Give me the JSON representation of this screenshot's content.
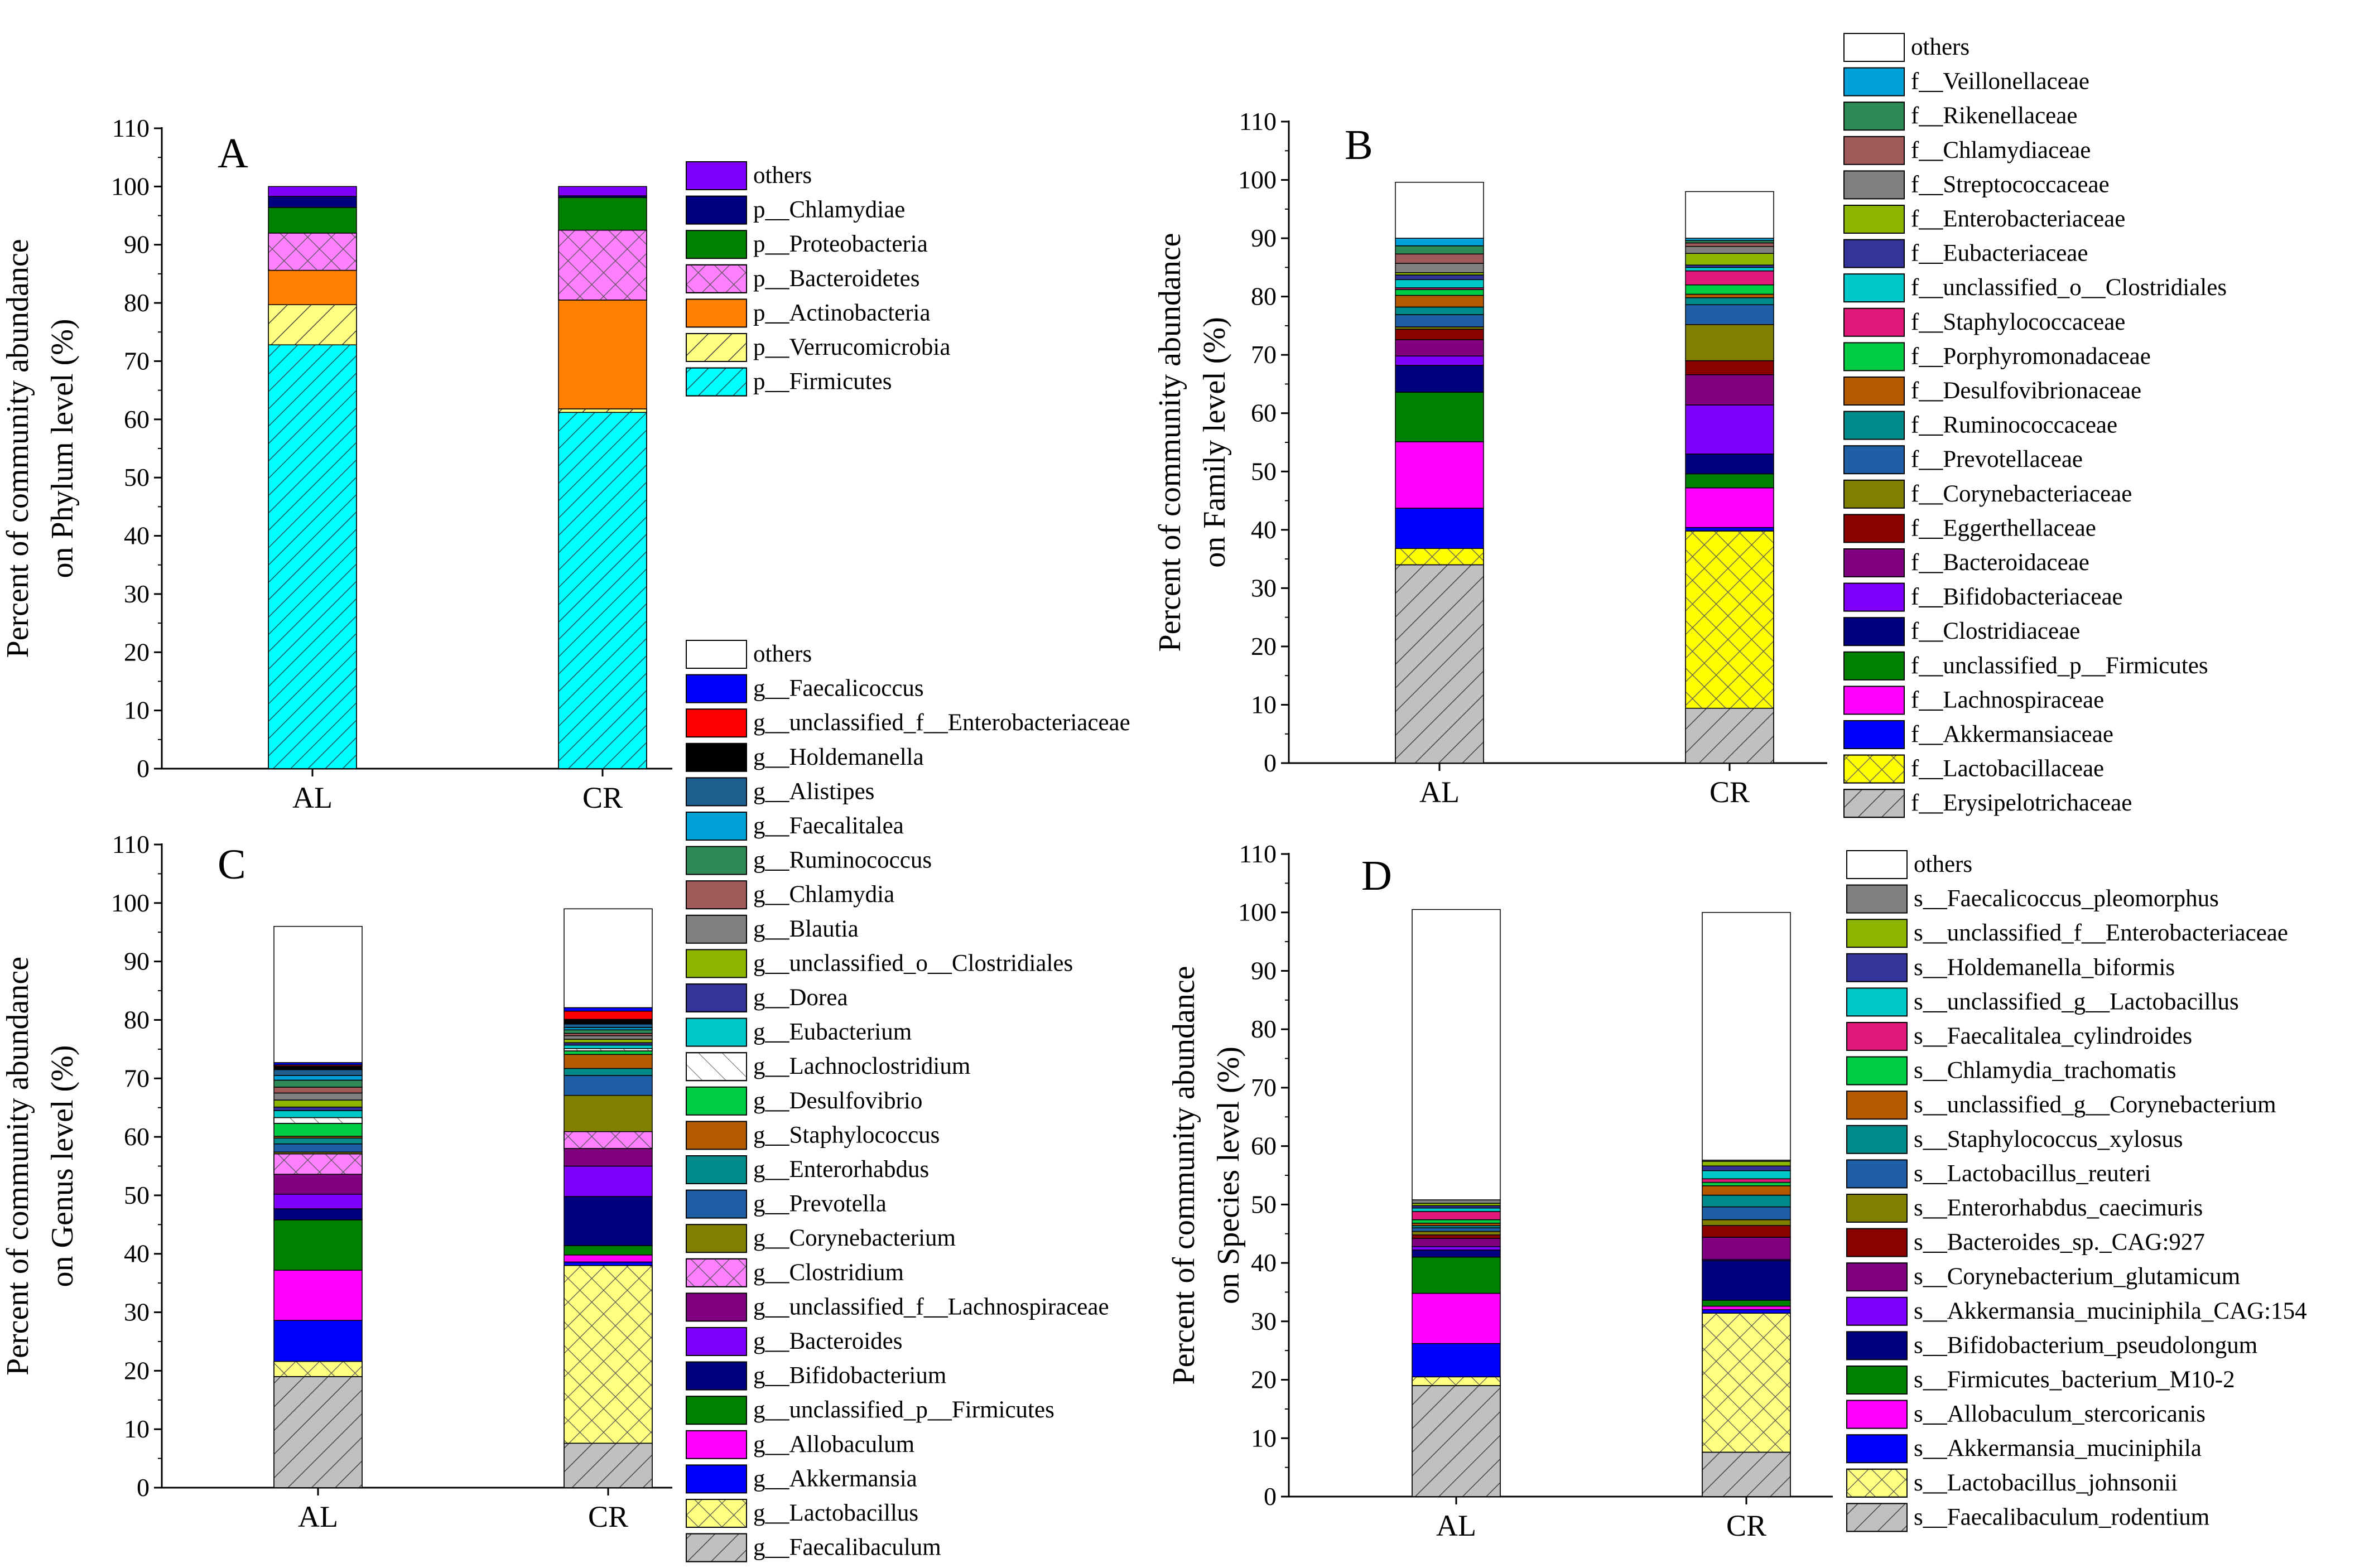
{
  "chart_data": [
    {
      "panel": "A",
      "type": "bar",
      "stacked": true,
      "categories": [
        "AL",
        "CR"
      ],
      "ylabel": [
        "Percent of community abundance",
        "on Phylum level (%)"
      ],
      "ylim": [
        0,
        110
      ],
      "yticks": [
        0,
        10,
        20,
        30,
        40,
        50,
        60,
        70,
        80,
        90,
        100,
        110
      ],
      "series": [
        {
          "name": "p__Firmicutes",
          "color": "#00ffff",
          "hatch": "diag-dense",
          "values": [
            72.8,
            61.2
          ]
        },
        {
          "name": "p__Verrucomicrobia",
          "color": "#ffff80",
          "hatch": "diag",
          "values": [
            6.9,
            0.6
          ]
        },
        {
          "name": "p__Actinobacteria",
          "color": "#ff8000",
          "hatch": "none",
          "values": [
            5.9,
            18.7
          ]
        },
        {
          "name": "p__Bacteroidetes",
          "color": "#ff80ff",
          "hatch": "cross",
          "values": [
            6.4,
            12.0
          ]
        },
        {
          "name": "p__Proteobacteria",
          "color": "#008000",
          "hatch": "none",
          "values": [
            4.4,
            5.6
          ]
        },
        {
          "name": "p__Chlamydiae",
          "color": "#000080",
          "hatch": "none",
          "values": [
            1.9,
            0.3
          ]
        },
        {
          "name": "others",
          "color": "#8000ff",
          "hatch": "none",
          "values": [
            1.7,
            1.6
          ]
        }
      ]
    },
    {
      "panel": "B",
      "type": "bar",
      "stacked": true,
      "categories": [
        "AL",
        "CR"
      ],
      "ylabel": [
        "Percent of community abundance",
        "on Family level (%)"
      ],
      "ylim": [
        0,
        110
      ],
      "yticks": [
        0,
        10,
        20,
        30,
        40,
        50,
        60,
        70,
        80,
        90,
        100,
        110
      ],
      "series": [
        {
          "name": "f__Erysipelotrichaceae",
          "color": "#c0c0c0",
          "hatch": "diag",
          "values": [
            34.0,
            9.4
          ]
        },
        {
          "name": "f__Lactobacillaceae",
          "color": "#ffff00",
          "hatch": "cross",
          "values": [
            2.8,
            30.4
          ]
        },
        {
          "name": "f__Akkermansiaceae",
          "color": "#0000ff",
          "hatch": "none",
          "values": [
            6.9,
            0.6
          ]
        },
        {
          "name": "f__Lachnospiraceae",
          "color": "#ff00ff",
          "hatch": "none",
          "values": [
            11.4,
            6.8
          ]
        },
        {
          "name": "f__unclassified_p__Firmicutes",
          "color": "#008000",
          "hatch": "none",
          "values": [
            8.5,
            2.4
          ]
        },
        {
          "name": "f__Clostridiaceae",
          "color": "#000080",
          "hatch": "none",
          "values": [
            4.6,
            3.4
          ]
        },
        {
          "name": "f__Bifidobacteriaceae",
          "color": "#8000ff",
          "hatch": "none",
          "values": [
            1.6,
            8.4
          ]
        },
        {
          "name": "f__Bacteroidaceae",
          "color": "#800080",
          "hatch": "none",
          "values": [
            2.8,
            5.2
          ]
        },
        {
          "name": "f__Eggerthellaceae",
          "color": "#8b0000",
          "hatch": "none",
          "values": [
            1.8,
            2.4
          ]
        },
        {
          "name": "f__Corynebacteriaceae",
          "color": "#808000",
          "hatch": "none",
          "values": [
            0.4,
            6.2
          ]
        },
        {
          "name": "f__Prevotellaceae",
          "color": "#1f5fa6",
          "hatch": "none",
          "values": [
            2.1,
            3.4
          ]
        },
        {
          "name": "f__Ruminococcaceae",
          "color": "#008b8b",
          "hatch": "none",
          "values": [
            1.3,
            1.2
          ]
        },
        {
          "name": "f__Desulfovibrionaceae",
          "color": "#b35900",
          "hatch": "none",
          "values": [
            2.0,
            0.6
          ]
        },
        {
          "name": "f__Porphyromonadaceae",
          "color": "#00cc44",
          "hatch": "none",
          "values": [
            1.0,
            1.6
          ]
        },
        {
          "name": "f__Staphylococcaceae",
          "color": "#e0197a",
          "hatch": "none",
          "values": [
            0.3,
            2.4
          ]
        },
        {
          "name": "f__unclassified_o__Clostridiales",
          "color": "#00c8c8",
          "hatch": "none",
          "values": [
            1.4,
            0.6
          ]
        },
        {
          "name": "f__Eubacteriaceae",
          "color": "#333399",
          "hatch": "none",
          "values": [
            0.8,
            0.4
          ]
        },
        {
          "name": "f__Enterobacteriaceae",
          "color": "#8db600",
          "hatch": "none",
          "values": [
            0.4,
            2.0
          ]
        },
        {
          "name": "f__Streptococcaceae",
          "color": "#808080",
          "hatch": "none",
          "values": [
            1.6,
            1.2
          ]
        },
        {
          "name": "f__Chlamydiaceae",
          "color": "#a05a5a",
          "hatch": "none",
          "values": [
            1.6,
            0.6
          ]
        },
        {
          "name": "f__Rikenellaceae",
          "color": "#2e8b57",
          "hatch": "none",
          "values": [
            1.4,
            0.4
          ]
        },
        {
          "name": "f__Veillonellaceae",
          "color": "#00a0d8",
          "hatch": "none",
          "values": [
            1.3,
            0.4
          ]
        },
        {
          "name": "others",
          "color": "#ffffff",
          "hatch": "none",
          "values": [
            9.6,
            8.0
          ]
        }
      ]
    },
    {
      "panel": "C",
      "type": "bar",
      "stacked": true,
      "categories": [
        "AL",
        "CR"
      ],
      "ylabel": [
        "Percent of community abundance",
        "on Genus level (%)"
      ],
      "ylim": [
        0,
        110
      ],
      "yticks": [
        0,
        10,
        20,
        30,
        40,
        50,
        60,
        70,
        80,
        90,
        100,
        110
      ],
      "series": [
        {
          "name": "g__Faecalibaculum",
          "color": "#c0c0c0",
          "hatch": "diag",
          "values": [
            19.0,
            7.6
          ]
        },
        {
          "name": "g__Lactobacillus",
          "color": "#ffff80",
          "hatch": "cross",
          "values": [
            2.6,
            30.4
          ]
        },
        {
          "name": "g__Akkermansia",
          "color": "#0000ff",
          "hatch": "none",
          "values": [
            7.0,
            0.6
          ]
        },
        {
          "name": "g__Allobaculum",
          "color": "#ff00ff",
          "hatch": "none",
          "values": [
            8.6,
            1.2
          ]
        },
        {
          "name": "g__unclassified_p__Firmicutes",
          "color": "#008000",
          "hatch": "none",
          "values": [
            8.6,
            1.6
          ]
        },
        {
          "name": "g__Bifidobacterium",
          "color": "#000080",
          "hatch": "none",
          "values": [
            1.9,
            8.4
          ]
        },
        {
          "name": "g__Bacteroides",
          "color": "#8000ff",
          "hatch": "none",
          "values": [
            2.5,
            5.2
          ]
        },
        {
          "name": "g__unclassified_f__Lachnospiraceae",
          "color": "#800080",
          "hatch": "none",
          "values": [
            3.4,
            3.0
          ]
        },
        {
          "name": "g__Clostridium",
          "color": "#ff80ff",
          "hatch": "cross",
          "values": [
            3.5,
            2.9
          ]
        },
        {
          "name": "g__Corynebacterium",
          "color": "#808000",
          "hatch": "none",
          "values": [
            0.3,
            6.2
          ]
        },
        {
          "name": "g__Prevotella",
          "color": "#1f5fa6",
          "hatch": "none",
          "values": [
            1.4,
            3.4
          ]
        },
        {
          "name": "g__Enterorhabdus",
          "color": "#008b8b",
          "hatch": "none",
          "values": [
            1.0,
            1.2
          ]
        },
        {
          "name": "g__Staphylococcus",
          "color": "#b35900",
          "hatch": "none",
          "values": [
            0.3,
            2.4
          ]
        },
        {
          "name": "g__Desulfovibrio",
          "color": "#00cc44",
          "hatch": "none",
          "values": [
            2.2,
            0.6
          ]
        },
        {
          "name": "g__Lachnoclostridium",
          "color": "#ffffff",
          "hatch": "diag-thin",
          "values": [
            1.0,
            0.4
          ]
        },
        {
          "name": "g__Eubacterium",
          "color": "#00c8c8",
          "hatch": "none",
          "values": [
            1.2,
            0.6
          ]
        },
        {
          "name": "g__Dorea",
          "color": "#333399",
          "hatch": "none",
          "values": [
            0.6,
            0.4
          ]
        },
        {
          "name": "g__unclassified_o__Clostridiales",
          "color": "#8db600",
          "hatch": "none",
          "values": [
            1.2,
            0.6
          ]
        },
        {
          "name": "g__Blautia",
          "color": "#808080",
          "hatch": "none",
          "values": [
            1.2,
            0.6
          ]
        },
        {
          "name": "g__Chlamydia",
          "color": "#a05a5a",
          "hatch": "none",
          "values": [
            1.0,
            0.4
          ]
        },
        {
          "name": "g__Ruminococcus",
          "color": "#2e8b57",
          "hatch": "none",
          "values": [
            1.2,
            0.6
          ]
        },
        {
          "name": "g__Faecalitalea",
          "color": "#00a0d8",
          "hatch": "none",
          "values": [
            0.8,
            0.4
          ]
        },
        {
          "name": "g__Alistipes",
          "color": "#1f5f8f",
          "hatch": "none",
          "values": [
            1.0,
            0.6
          ]
        },
        {
          "name": "g__Holdemanella",
          "color": "#000000",
          "hatch": "none",
          "values": [
            0.6,
            0.8
          ]
        },
        {
          "name": "g__unclassified_f__Enterobacteriaceae",
          "color": "#ff0000",
          "hatch": "none",
          "values": [
            0.2,
            1.4
          ]
        },
        {
          "name": "g__Faecalicoccus",
          "color": "#0000ff",
          "hatch": "none",
          "values": [
            0.4,
            0.6
          ]
        },
        {
          "name": "others",
          "color": "#ffffff",
          "hatch": "none",
          "values": [
            23.3,
            16.9
          ]
        }
      ]
    },
    {
      "panel": "D",
      "type": "bar",
      "stacked": true,
      "categories": [
        "AL",
        "CR"
      ],
      "ylabel": [
        "Percent of community abundance",
        "on Species level (%)"
      ],
      "ylim": [
        0,
        110
      ],
      "yticks": [
        0,
        10,
        20,
        30,
        40,
        50,
        60,
        70,
        80,
        90,
        100,
        110
      ],
      "series": [
        {
          "name": "s__Faecalibaculum_rodentium",
          "color": "#c0c0c0",
          "hatch": "diag",
          "values": [
            19.0,
            7.6
          ]
        },
        {
          "name": "s__Lactobacillus_johnsonii",
          "color": "#ffff80",
          "hatch": "cross",
          "values": [
            1.5,
            23.8
          ]
        },
        {
          "name": "s__Akkermansia_muciniphila",
          "color": "#0000ff",
          "hatch": "none",
          "values": [
            5.7,
            0.6
          ]
        },
        {
          "name": "s__Allobaculum_stercoricanis",
          "color": "#ff00ff",
          "hatch": "none",
          "values": [
            8.6,
            0.6
          ]
        },
        {
          "name": "s__Firmicutes_bacterium_M10-2",
          "color": "#008000",
          "hatch": "none",
          "values": [
            6.2,
            1.0
          ]
        },
        {
          "name": "s__Bifidobacterium_pseudolongum",
          "color": "#000080",
          "hatch": "none",
          "values": [
            1.2,
            6.8
          ]
        },
        {
          "name": "s__Akkermansia_muciniphila_CAG:154",
          "color": "#8000ff",
          "hatch": "none",
          "values": [
            0.6,
            0.2
          ]
        },
        {
          "name": "s__Corynebacterium_glutamicum",
          "color": "#800080",
          "hatch": "none",
          "values": [
            1.4,
            3.8
          ]
        },
        {
          "name": "s__Bacteroides_sp._CAG:927",
          "color": "#8b0000",
          "hatch": "none",
          "values": [
            0.6,
            2.0
          ]
        },
        {
          "name": "s__Enterorhabdus_caecimuris",
          "color": "#808000",
          "hatch": "none",
          "values": [
            0.6,
            1.0
          ]
        },
        {
          "name": "s__Lactobacillus_reuteri",
          "color": "#1f5fa6",
          "hatch": "none",
          "values": [
            0.6,
            2.2
          ]
        },
        {
          "name": "s__Staphylococcus_xylosus",
          "color": "#008b8b",
          "hatch": "none",
          "values": [
            0.4,
            2.0
          ]
        },
        {
          "name": "s__unclassified_g__Corynebacterium",
          "color": "#b35900",
          "hatch": "none",
          "values": [
            0.4,
            1.6
          ]
        },
        {
          "name": "s__Chlamydia_trachomatis",
          "color": "#00cc44",
          "hatch": "none",
          "values": [
            0.6,
            0.6
          ]
        },
        {
          "name": "s__Faecalitalea_cylindroides",
          "color": "#e0197a",
          "hatch": "none",
          "values": [
            1.4,
            0.6
          ]
        },
        {
          "name": "s__unclassified_g__Lactobacillus",
          "color": "#00c8c8",
          "hatch": "none",
          "values": [
            0.6,
            1.4
          ]
        },
        {
          "name": "s__Holdemanella_biformis",
          "color": "#333399",
          "hatch": "none",
          "values": [
            0.4,
            0.8
          ]
        },
        {
          "name": "s__unclassified_f__Enterobacteriaceae",
          "color": "#8db600",
          "hatch": "none",
          "values": [
            0.4,
            0.8
          ]
        },
        {
          "name": "s__Faecalicoccus_pleomorphus",
          "color": "#808080",
          "hatch": "none",
          "values": [
            0.6,
            0.2
          ]
        },
        {
          "name": "others",
          "color": "#ffffff",
          "hatch": "none",
          "values": [
            49.7,
            42.4
          ]
        }
      ]
    }
  ]
}
